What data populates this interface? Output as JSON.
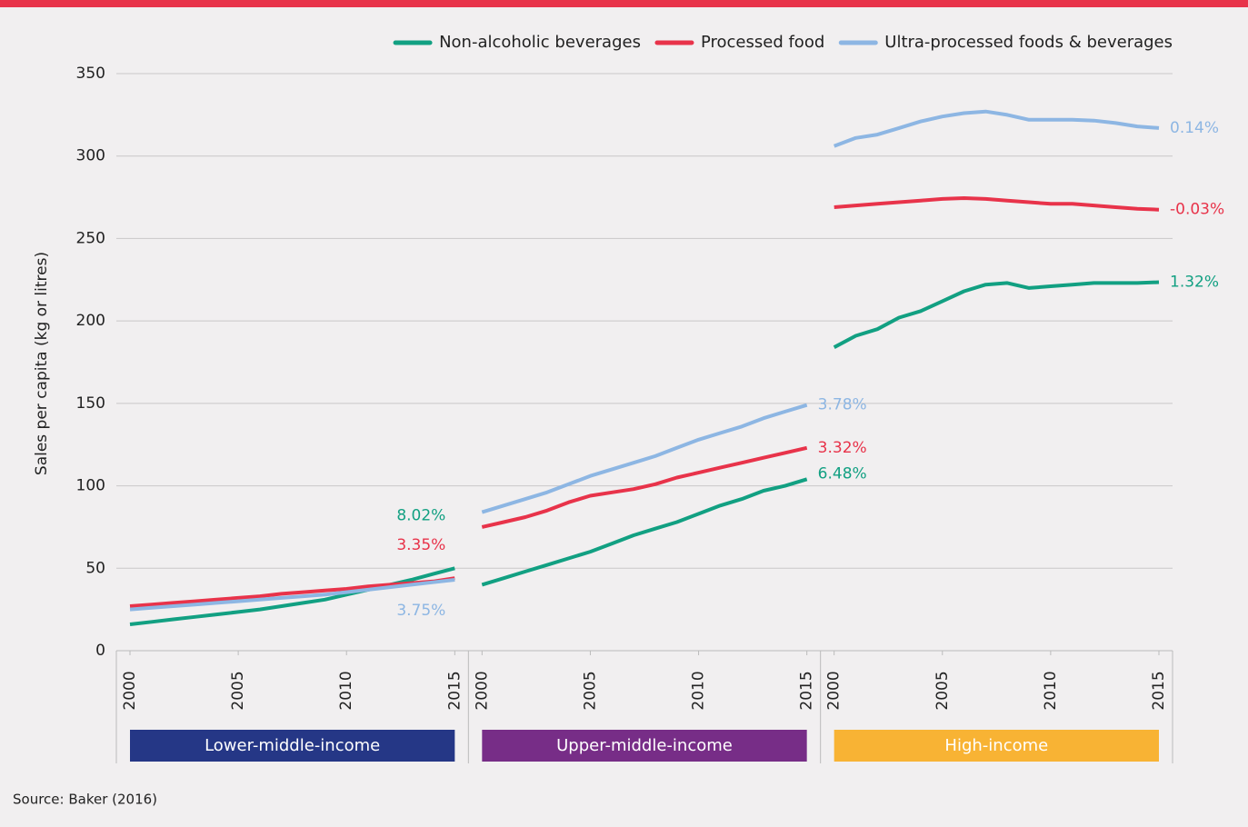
{
  "chart_data": {
    "type": "line",
    "ylabel": "Sales per capita (kg or litres)",
    "ylim": [
      0,
      350
    ],
    "yticks": [
      0,
      50,
      100,
      150,
      200,
      250,
      300,
      350
    ],
    "xlim": [
      2000,
      2015
    ],
    "xticks": [
      2000,
      2005,
      2010,
      2015
    ],
    "grid": true,
    "legend": "top-right",
    "source": "Source: Baker (2016)",
    "series": [
      {
        "name": "Non-alcoholic beverages",
        "color": "#12a082"
      },
      {
        "name": "Processed food",
        "color": "#e8334a"
      },
      {
        "name": "Ultra-processed foods & beverages",
        "color": "#8db6e3"
      }
    ],
    "panels": [
      {
        "label": "Lower-middle-income",
        "color": "#253786",
        "x": [
          2000,
          2001,
          2002,
          2003,
          2004,
          2005,
          2006,
          2007,
          2008,
          2009,
          2010,
          2011,
          2012,
          2013,
          2014,
          2015
        ],
        "series": [
          {
            "values": [
              16,
              17.5,
              19,
              20.5,
              22,
              23.5,
              25,
              27,
              29,
              31,
              34,
              37,
              40,
              43,
              46.5,
              50
            ],
            "annotation": "8.02%"
          },
          {
            "values": [
              27,
              28,
              29,
              30,
              31,
              32,
              33,
              34.5,
              35.5,
              36.5,
              37.5,
              39,
              40,
              41,
              42,
              44
            ],
            "annotation": "3.35%"
          },
          {
            "values": [
              25,
              26,
              27,
              28,
              29,
              30,
              31,
              32,
              33,
              34,
              35.5,
              37,
              38.5,
              40,
              41.5,
              43
            ],
            "annotation": "3.75%"
          }
        ]
      },
      {
        "label": "Upper-middle-income",
        "color": "#772d87",
        "x": [
          2000,
          2001,
          2002,
          2003,
          2004,
          2005,
          2006,
          2007,
          2008,
          2009,
          2010,
          2011,
          2012,
          2013,
          2014,
          2015
        ],
        "series": [
          {
            "values": [
              40,
              44,
              48,
              52,
              56,
              60,
              65,
              70,
              74,
              78,
              83,
              88,
              92,
              97,
              100,
              104
            ],
            "annotation": "6.48%"
          },
          {
            "values": [
              75,
              78,
              81,
              85,
              90,
              94,
              96,
              98,
              101,
              105,
              108,
              111,
              114,
              117,
              120,
              123
            ],
            "annotation": "3.32%"
          },
          {
            "values": [
              84,
              88,
              92,
              96,
              101,
              106,
              110,
              114,
              118,
              123,
              128,
              132,
              136,
              141,
              145,
              149
            ],
            "annotation": "3.78%"
          }
        ]
      },
      {
        "label": "High-income",
        "color": "#f8b334",
        "x": [
          2000,
          2001,
          2002,
          2003,
          2004,
          2005,
          2006,
          2007,
          2008,
          2009,
          2010,
          2011,
          2012,
          2013,
          2014,
          2015
        ],
        "series": [
          {
            "values": [
              184,
              191,
              195,
              202,
              206,
              212,
              218,
              222,
              223,
              220,
              221,
              222,
              223,
              223,
              223,
              223.5
            ],
            "annotation": "1.32%"
          },
          {
            "values": [
              269,
              270,
              271,
              272,
              273,
              274,
              274.5,
              274,
              273,
              272,
              271,
              271,
              270,
              269,
              268,
              267.5
            ],
            "annotation": "-0.03%"
          },
          {
            "values": [
              306,
              311,
              313,
              317,
              321,
              324,
              326,
              327,
              325,
              322,
              322,
              322,
              321.5,
              320,
              318,
              317
            ],
            "annotation": "0.14%"
          }
        ]
      }
    ]
  }
}
